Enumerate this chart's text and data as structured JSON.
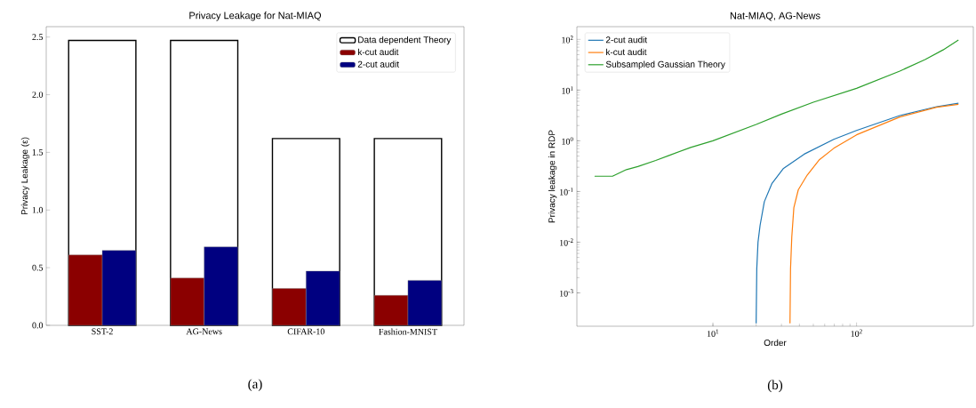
{
  "chart_data": [
    {
      "type": "bar",
      "title": "Privacy Leakage for Nat-MIAQ",
      "ylabel": "Privacy Leakage (ε)",
      "categories": [
        "SST-2",
        "AG-News",
        "CIFAR-10",
        "Fashion-MNIST"
      ],
      "series": [
        {
          "name": "Data dependent Theory",
          "color": "#ffffff",
          "values": [
            2.47,
            2.47,
            1.62,
            1.62
          ]
        },
        {
          "name": "k-cut audit",
          "color": "#8b0000",
          "values": [
            0.61,
            0.41,
            0.32,
            0.26
          ]
        },
        {
          "name": "2-cut audit",
          "color": "#000080",
          "values": [
            0.65,
            0.68,
            0.47,
            0.39
          ]
        }
      ],
      "ylim": [
        0,
        2.59
      ],
      "yticks": [
        {
          "value": 0,
          "label": "0.0"
        },
        {
          "value": 0.5,
          "label": "0.5"
        },
        {
          "value": 1,
          "label": "1.0"
        },
        {
          "value": 1.5,
          "label": "1.5"
        },
        {
          "value": 2,
          "label": "2.0"
        },
        {
          "value": 2.5,
          "label": "2.5"
        }
      ],
      "legend": "top right",
      "annotations": [
        "(a)"
      ]
    },
    {
      "type": "line",
      "title": "Nat-MIAQ, AG-News",
      "xlabel": "Order",
      "ylabel": "Privacy leakage in RDP",
      "log": "xy",
      "xlim": [
        1.13,
        650
      ],
      "ylim": [
        0.00022,
        178
      ],
      "xticks": [
        {
          "value": 10,
          "label": "10$^{1}$"
        },
        {
          "value": 100,
          "label": "10$^{2}$"
        }
      ],
      "yticks": [
        {
          "value": 0.001,
          "label": "10$^{-3}$"
        },
        {
          "value": 0.01,
          "label": "10$^{-2}$"
        },
        {
          "value": 0.1,
          "label": "10$^{-1}$"
        },
        {
          "value": 1,
          "label": "10$^{0}$"
        },
        {
          "value": 10,
          "label": "10$^{1}$"
        },
        {
          "value": 100,
          "label": "10$^{2}$"
        }
      ],
      "series": [
        {
          "name": "2-cut audit",
          "color": "#1f77b4",
          "x": [
            20.0,
            20.2,
            20.6,
            21.3,
            22.8,
            25.7,
            31,
            43.2,
            69.4,
            100,
            200,
            361,
            512
          ],
          "values": [
            0.00025,
            0.003,
            0.01,
            0.0215,
            0.063,
            0.142,
            0.286,
            0.545,
            1.07,
            1.6,
            3.14,
            4.7,
            5.5
          ]
        },
        {
          "name": "k-cut audit",
          "color": "#ff7f0e",
          "x": [
            34.4,
            34.7,
            35.4,
            36.6,
            39.3,
            45.3,
            54.8,
            69.4,
            100,
            200,
            361,
            512
          ],
          "values": [
            0.00025,
            0.003,
            0.0126,
            0.048,
            0.108,
            0.21,
            0.417,
            0.71,
            1.31,
            2.94,
            4.58,
            5.24
          ]
        },
        {
          "name": "Subsampled Gaussian Theory",
          "color": "#2ca02c",
          "x": [
            1.5,
            2,
            2.5,
            3,
            4,
            5,
            7,
            10,
            20,
            30,
            50,
            100,
            200,
            300,
            400,
            512
          ],
          "values": [
            0.2,
            0.2,
            0.27,
            0.31,
            0.41,
            0.52,
            0.74,
            1.0,
            2.1,
            3.36,
            5.75,
            10.8,
            23.7,
            40,
            62,
            97
          ]
        }
      ],
      "legend": "top left",
      "annotations": [
        "(b)"
      ]
    }
  ]
}
